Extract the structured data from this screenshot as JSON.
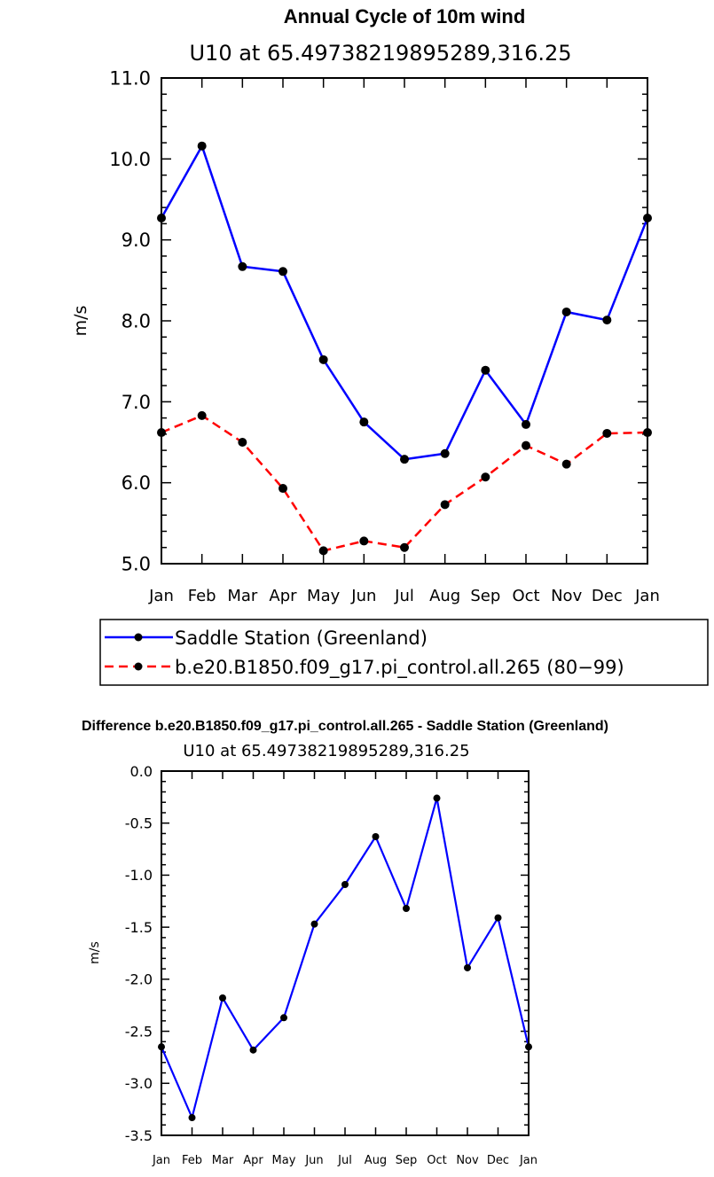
{
  "chart_data": [
    {
      "type": "line",
      "title": "Annual Cycle of 10m wind",
      "subtitle": "U10 at 65.49738219895289,316.25",
      "xlabel": "",
      "ylabel": "m/s",
      "categories": [
        "Jan",
        "Feb",
        "Mar",
        "Apr",
        "May",
        "Jun",
        "Jul",
        "Aug",
        "Sep",
        "Oct",
        "Nov",
        "Dec",
        "Jan"
      ],
      "ylim": [
        5.0,
        11.0
      ],
      "yticks": [
        "5.0",
        "6.0",
        "7.0",
        "8.0",
        "9.0",
        "10.0",
        "11.0"
      ],
      "grid": false,
      "legend_position": "bottom",
      "series": [
        {
          "name": "Saddle Station (Greenland)",
          "values": [
            9.27,
            10.16,
            8.67,
            8.61,
            7.52,
            6.75,
            6.29,
            6.36,
            7.39,
            6.72,
            8.11,
            8.01,
            9.27
          ],
          "color": "#0000ff",
          "line_style": "solid"
        },
        {
          "name": "b.e20.B1850.f09_g17.pi_control.all.265 (80−99)",
          "values": [
            6.62,
            6.83,
            6.5,
            5.93,
            5.16,
            5.28,
            5.2,
            5.73,
            6.07,
            6.46,
            6.23,
            6.61,
            6.62
          ],
          "color": "#ff0000",
          "line_style": "dashed"
        }
      ]
    },
    {
      "type": "line",
      "title": "Difference b.e20.B1850.f09_g17.pi_control.all.265 - Saddle Station (Greenland)",
      "subtitle": "U10 at 65.49738219895289,316.25",
      "xlabel": "",
      "ylabel": "m/s",
      "categories": [
        "Jan",
        "Feb",
        "Mar",
        "Apr",
        "May",
        "Jun",
        "Jul",
        "Aug",
        "Sep",
        "Oct",
        "Nov",
        "Dec",
        "Jan"
      ],
      "ylim": [
        -3.5,
        0.0
      ],
      "yticks": [
        "-3.5",
        "-3.0",
        "-2.5",
        "-2.0",
        "-1.5",
        "-1.0",
        "-0.5",
        "0.0"
      ],
      "grid": false,
      "series": [
        {
          "name": "",
          "values": [
            -2.65,
            -3.33,
            -2.18,
            -2.68,
            -2.37,
            -1.47,
            -1.09,
            -0.63,
            -1.32,
            -0.26,
            -1.89,
            -1.41,
            -2.65
          ],
          "color": "#0000ff",
          "line_style": "solid"
        }
      ]
    }
  ]
}
